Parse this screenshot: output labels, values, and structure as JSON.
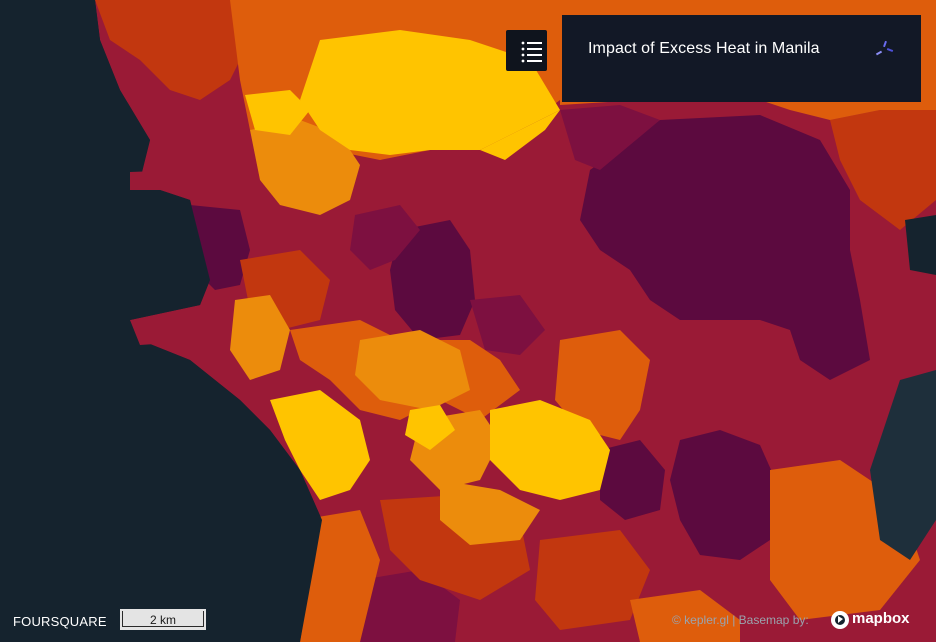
{
  "map": {
    "title": "Impact of Excess Heat in Manila",
    "brand": "FOURSQUARE",
    "scale_label": "2 km",
    "attribution_kepler": "© kepler.gl",
    "attribution_sep": " | Basemap by: ",
    "mapbox_label": "mapbox",
    "zoom_in_label": "+",
    "zoom_out_label": "−",
    "colors": {
      "water": "#15232e",
      "land_dark": "#1e2f3b",
      "heat_scale": [
        "#5c0a3f",
        "#7d1040",
        "#9a1a36",
        "#c2370f",
        "#de5d0c",
        "#ec8c0c",
        "#ffc400"
      ]
    }
  }
}
